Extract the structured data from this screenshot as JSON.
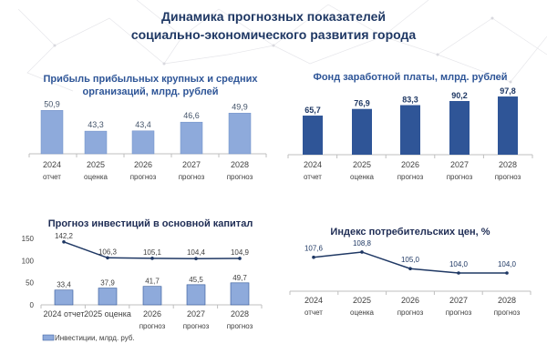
{
  "slide": {
    "title_line1": "Динамика  прогнозных  показателей",
    "title_line2": "социально-экономического развития города"
  },
  "colors": {
    "title": "#1f3864",
    "light_bar": "#8eaadb",
    "dark_bar": "#2f5597",
    "line": "#1f3864"
  },
  "chart_data": [
    {
      "id": "profit",
      "type": "bar",
      "title": "Прибыль прибыльных крупных и средних организаций, млрд. рублей",
      "title_lines": [
        "Прибыль прибыльных крупных и средних",
        "организаций, млрд. рублей"
      ],
      "categories": [
        [
          "2024",
          "отчет"
        ],
        [
          "2025",
          "оценка"
        ],
        [
          "2026",
          "прогноз"
        ],
        [
          "2027",
          "прогноз"
        ],
        [
          "2028",
          "прогноз"
        ]
      ],
      "values": [
        50.9,
        43.3,
        43.4,
        46.6,
        49.9
      ],
      "labels": [
        "50,9",
        "43,3",
        "43,4",
        "46,6",
        "49,9"
      ],
      "color": "#8eaadb",
      "grid": false
    },
    {
      "id": "wages",
      "type": "bar",
      "title": "Фонд заработной платы, млрд. рублей",
      "categories": [
        [
          "2024",
          "отчет"
        ],
        [
          "2025",
          "оценка"
        ],
        [
          "2026",
          "прогноз"
        ],
        [
          "2027",
          "прогноз"
        ],
        [
          "2028",
          "прогноз"
        ]
      ],
      "values": [
        65.7,
        76.9,
        83.3,
        90.2,
        97.8
      ],
      "labels": [
        "65,7",
        "76,9",
        "83,3",
        "90,2",
        "97,8"
      ],
      "color": "#2f5597",
      "grid": false
    },
    {
      "id": "investment",
      "type": "bar+line",
      "title": "Прогноз инвестиций в основной капитал",
      "categories": [
        [
          "2024 отчет"
        ],
        [
          "2025 оценка"
        ],
        [
          "2026",
          "прогноз"
        ],
        [
          "2027",
          "прогноз"
        ],
        [
          "2028",
          "прогноз"
        ]
      ],
      "yticks": [
        "0",
        "50",
        "100",
        "150"
      ],
      "ylim": [
        0,
        150
      ],
      "series": [
        {
          "name": "Инвестиции, млрд. руб.",
          "type": "bar",
          "values": [
            33.4,
            37.9,
            41.7,
            45.5,
            49.7
          ],
          "labels": [
            "33,4",
            "37,9",
            "41,7",
            "45,5",
            "49,7"
          ],
          "color": "#8eaadb"
        },
        {
          "type": "line",
          "values": [
            142.2,
            106.3,
            105.1,
            104.4,
            104.9
          ],
          "labels": [
            "142,2",
            "106,3",
            "105,1",
            "104,4",
            "104,9"
          ],
          "color": "#1f3864"
        }
      ],
      "legend": "bottom-left",
      "grid": false
    },
    {
      "id": "cpi",
      "type": "line",
      "title": "Индекс потребительских цен, %",
      "categories": [
        [
          "2024",
          "отчет"
        ],
        [
          "2025",
          "оценка"
        ],
        [
          "2026",
          "прогноз"
        ],
        [
          "2027",
          "прогноз"
        ],
        [
          "2028",
          "прогноз"
        ]
      ],
      "values": [
        107.6,
        108.8,
        105.0,
        104.0,
        104.0
      ],
      "labels": [
        "107,6",
        "108,8",
        "105,0",
        "104,0",
        "104,0"
      ],
      "color": "#1f3864",
      "grid": false
    }
  ]
}
